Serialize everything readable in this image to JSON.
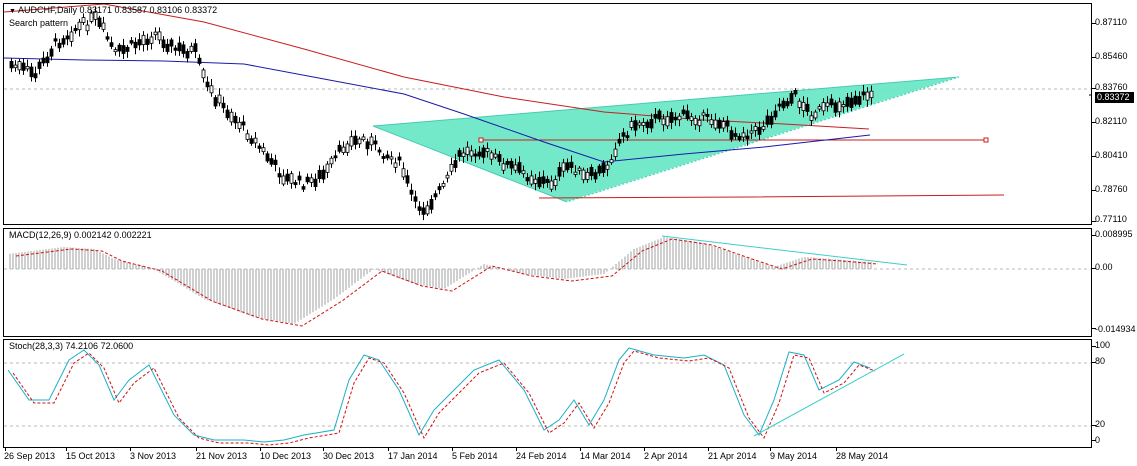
{
  "window": {
    "symbol_menu_icon": "triangle-down-icon",
    "title": "AUDCHF,Daily",
    "ohlc": "0.83171 0.83587 0.83106 0.83372",
    "subtitle": "Search pattern"
  },
  "price_panel": {
    "scale_labels": [
      "0.87110",
      "0.85460",
      "0.83760",
      "0.82110",
      "0.80410",
      "0.78760",
      "0.77110"
    ],
    "last_price": "0.83372",
    "colors": {
      "ma_fast": "#1a1aa8",
      "ma_slow": "#c81e1e",
      "pattern_fill": "#6de8c8",
      "bull_candle": "#ffffff",
      "bear_candle": "#000000"
    }
  },
  "macd_panel": {
    "label": "MACD(12,26,9) 0.002142 0.002221",
    "scale_labels": [
      "0.008995",
      "0.00",
      "-0.014934"
    ],
    "colors": {
      "histogram": "#a0a0a0",
      "signal": "#d01010",
      "trendline": "#3ad0c8"
    }
  },
  "stoch_panel": {
    "label": "Stoch(28,3,3) 74.2106 72.0600",
    "scale_labels": [
      "100",
      "80",
      "20",
      "0"
    ],
    "colors": {
      "main": "#1ab0c8",
      "signal": "#d01010",
      "trendline": "#3ad0c8"
    }
  },
  "time_axis": {
    "labels": [
      "26 Sep 2013",
      "15 Oct 2013",
      "3 Nov 2013",
      "21 Nov 2013",
      "10 Dec 2013",
      "30 Dec 2013",
      "17 Jan 2014",
      "5 Feb 2014",
      "24 Feb 2014",
      "14 Mar 2014",
      "2 Apr 2014",
      "21 Apr 2014",
      "9 May 2014",
      "28 May 2014"
    ]
  }
}
